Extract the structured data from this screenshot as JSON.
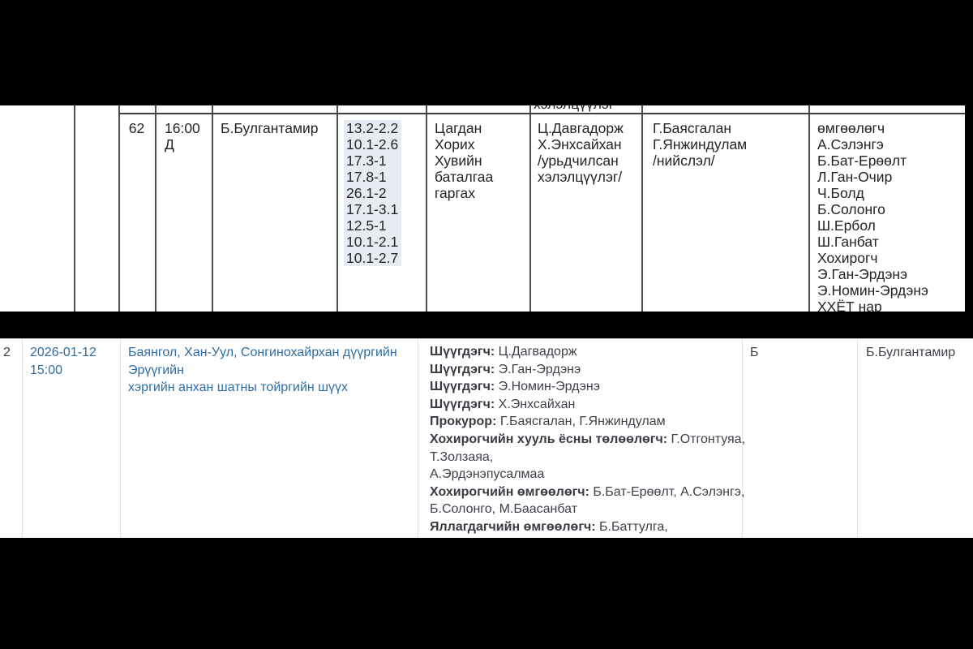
{
  "colors": {
    "page_background": "#000000",
    "accent_blue": "#2e6da4",
    "codes_highlight": "#e7ecf3",
    "top_text": "#242424",
    "bottom_text": "#3d4149"
  },
  "top_table": {
    "cut_text_previous_row": "хэлэлцүүлэг",
    "row": {
      "number": "62",
      "time_lines": [
        "16:00",
        "Д"
      ],
      "judge_name": "Б.Булгантамир",
      "case_codes": [
        "13.2-2.2",
        "10.1-2.6",
        "17.3-1",
        "17.8-1",
        "26.1-2",
        "17.1-3.1",
        "12.5-1",
        "10.1-2.1",
        "10.1-2.7"
      ],
      "request_lines": [
        "Цагдан",
        "Хорих",
        "Хувийн",
        "баталгаа",
        "гаргах"
      ],
      "judges_lines": [
        "Ц.Давгадорж",
        "Х.Энхсайхан",
        "/урьдчилсан",
        "хэлэлцүүлэг/"
      ],
      "prosecutor_lines": [
        "Г.Баясгалан",
        "Г.Янжиндулам",
        "/нийслэл/"
      ],
      "lawyers_lines": [
        "өмгөөлөгч",
        "А.Сэлэнгэ",
        "Б.Бат-Ерөөлт",
        "Л.Ган-Очир",
        "Ч.Болд",
        "Б.Солонго",
        "Ш.Ербол",
        "Ш.Ганбат",
        "Хохирогч",
        "Э.Ган-Эрдэнэ",
        "Э.Номин-Эрдэнэ",
        "ХХЁТ нар"
      ]
    }
  },
  "bottom_table": {
    "row_number": "2",
    "datetime_lines": [
      "2026-01-12",
      "15:00"
    ],
    "court_lines": [
      "Баянгол, Хан-Уул, Сонгинохайрхан дүүргийн Эрүүгийн",
      "хэргийн анхан шатны тойргийн шүүх"
    ],
    "participants": [
      {
        "label": "Шүүгдэгч:",
        "value": "Ц.Дагвадорж"
      },
      {
        "label": "Шүүгдэгч:",
        "value": "Э.Ган-Эрдэнэ"
      },
      {
        "label": "Шүүгдэгч:",
        "value": "Э.Номин-Эрдэнэ"
      },
      {
        "label": "Шүүгдэгч:",
        "value": "Х.Энхсайхан"
      },
      {
        "label": "Прокурор:",
        "value": "Г.Баясгалан, Г.Янжиндулам"
      },
      {
        "label": "Хохирогчийн хууль ёсны төлөөлөгч:",
        "value": "Г.Отгонтуяа, Т.Золзаяа,\nА.Эрдэнэпусалмаа"
      },
      {
        "label": "Хохирогчийн өмгөөлөгч:",
        "value": "Б.Бат-Ерөөлт, А.Сэлэнгэ,\nБ.Солонго, М.Баасанбат"
      },
      {
        "label": "Яллагдагчийн өмгөөлөгч:",
        "value": "Б.Баттулга, Ц.Баасанжаргал,\nШ.Ербол, Ш.Ганбат, Ж.Батхуяг, Б.Мэргэн, Л.Ган-Очир"
      }
    ],
    "status_letter": "Б",
    "assigned_judge": "Б.Булгантамир"
  }
}
